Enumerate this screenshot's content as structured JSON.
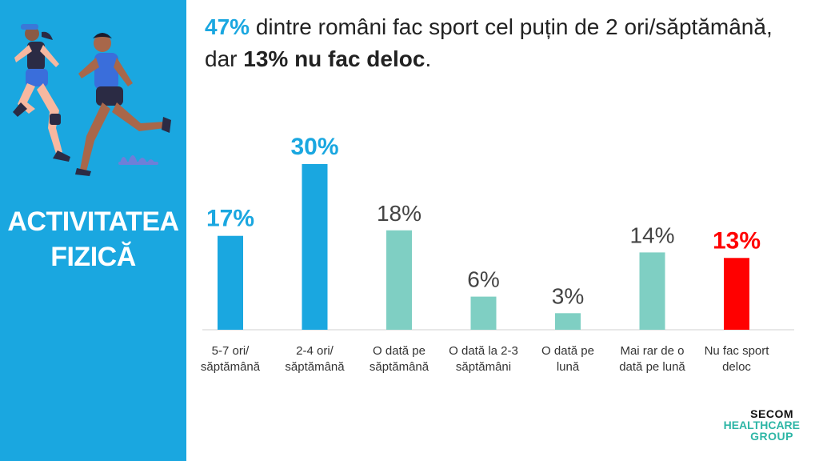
{
  "sidebar": {
    "title_line1": "ACTIVITATEA",
    "title_line2": "FIZICĂ",
    "background": "#1AA7E0",
    "illustration": "two-runners-illustration"
  },
  "headline": {
    "pct1": "47%",
    "text1": " dintre români fac sport cel puțin de 2 ori/săptămână, dar ",
    "bold2": "13% nu fac deloc",
    "end": "."
  },
  "logo": {
    "line1": "SECOM",
    "line2": "HEALTHCARE",
    "line3": "GROUP"
  },
  "chart_data": {
    "type": "bar",
    "categories": [
      [
        "5-7 ori/",
        "săptămână"
      ],
      [
        "2-4 ori/",
        "săptămână"
      ],
      [
        "O dată pe",
        "săptămână"
      ],
      [
        "O dată la 2-3",
        "săptămâni"
      ],
      [
        "O dată pe",
        "lună"
      ],
      [
        "Mai rar de o",
        "dată pe lună"
      ],
      [
        "Nu fac sport",
        "deloc"
      ]
    ],
    "values": [
      17,
      30,
      18,
      6,
      3,
      14,
      13
    ],
    "value_labels": [
      "17%",
      "30%",
      "18%",
      "6%",
      "3%",
      "14%",
      "13%"
    ],
    "colors": [
      "#1AA7E0",
      "#1AA7E0",
      "#7FCFC3",
      "#7FCFC3",
      "#7FCFC3",
      "#7FCFC3",
      "#FF0000"
    ],
    "label_colors": [
      "#1AA7E0",
      "#1AA7E0",
      "#444444",
      "#444444",
      "#444444",
      "#444444",
      "#FF0000"
    ],
    "label_bold": [
      true,
      true,
      false,
      false,
      false,
      false,
      true
    ],
    "ylim": [
      0,
      30
    ],
    "grid": false
  }
}
